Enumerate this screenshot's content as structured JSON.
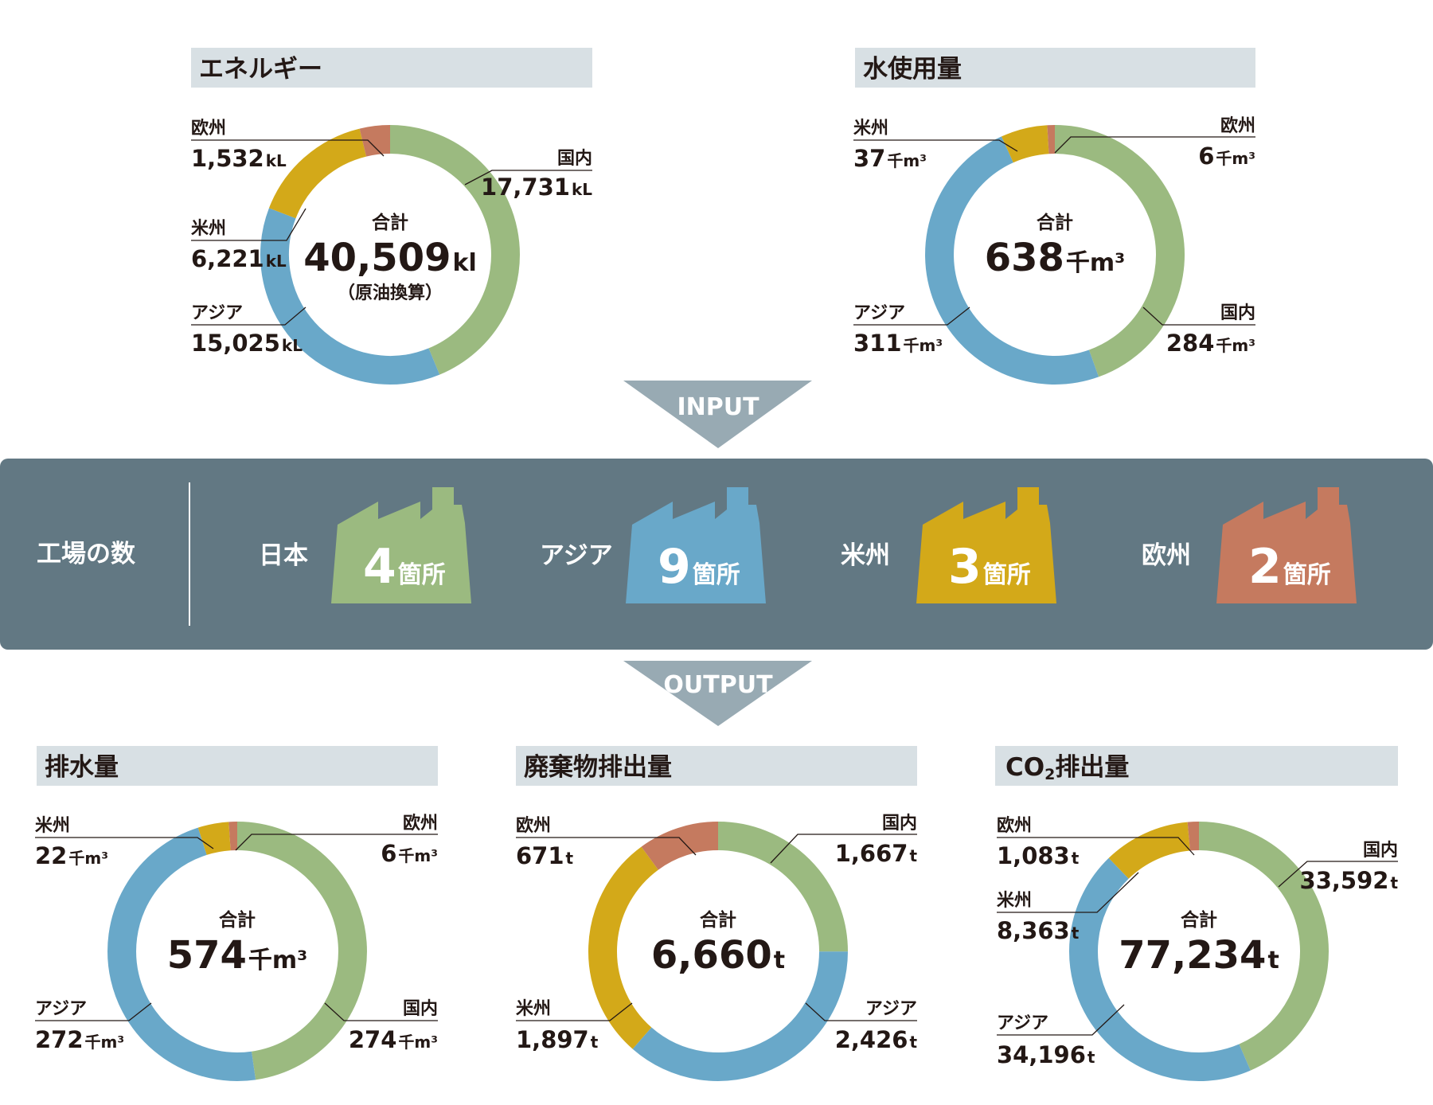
{
  "colors": {
    "domestic": "#9bba80",
    "asia": "#69a8c9",
    "americas": "#d3a919",
    "europe": "#c57a5f",
    "band": "#627883",
    "arrow": "#98aab3",
    "header_bg": "#d8e0e4"
  },
  "io": {
    "input": "INPUT",
    "output": "OUTPUT"
  },
  "factories": {
    "title": "工場の数",
    "items": [
      {
        "region": "日本",
        "count": "4",
        "unit": "箇所",
        "color": "#9bba80"
      },
      {
        "region": "アジア",
        "count": "9",
        "unit": "箇所",
        "color": "#69a8c9"
      },
      {
        "region": "米州",
        "count": "3",
        "unit": "箇所",
        "color": "#d3a919"
      },
      {
        "region": "欧州",
        "count": "2",
        "unit": "箇所",
        "color": "#c57a5f"
      }
    ]
  },
  "chart_data": [
    {
      "type": "pie",
      "title": "エネルギー",
      "total_label": "合計",
      "total_value": "40,509",
      "total_unit": "kl",
      "total_note": "（原油換算）",
      "slices": [
        {
          "region": "国内",
          "value": 17731,
          "display": "17,731",
          "unit": "kL"
        },
        {
          "region": "アジア",
          "value": 15025,
          "display": "15,025",
          "unit": "kL"
        },
        {
          "region": "米州",
          "value": 6221,
          "display": "6,221",
          "unit": "kL"
        },
        {
          "region": "欧州",
          "value": 1532,
          "display": "1,532",
          "unit": "kL"
        }
      ]
    },
    {
      "type": "pie",
      "title": "水使用量",
      "total_label": "合計",
      "total_value": "638",
      "total_unit": "千m³",
      "slices": [
        {
          "region": "国内",
          "value": 284,
          "display": "284",
          "unit": "千m³"
        },
        {
          "region": "アジア",
          "value": 311,
          "display": "311",
          "unit": "千m³"
        },
        {
          "region": "米州",
          "value": 37,
          "display": "37",
          "unit": "千m³"
        },
        {
          "region": "欧州",
          "value": 6,
          "display": "6",
          "unit": "千m³"
        }
      ]
    },
    {
      "type": "pie",
      "title": "排水量",
      "total_label": "合計",
      "total_value": "574",
      "total_unit": "千m³",
      "slices": [
        {
          "region": "国内",
          "value": 274,
          "display": "274",
          "unit": "千m³"
        },
        {
          "region": "アジア",
          "value": 272,
          "display": "272",
          "unit": "千m³"
        },
        {
          "region": "米州",
          "value": 22,
          "display": "22",
          "unit": "千m³"
        },
        {
          "region": "欧州",
          "value": 6,
          "display": "6",
          "unit": "千m³"
        }
      ]
    },
    {
      "type": "pie",
      "title": "廃棄物排出量",
      "total_label": "合計",
      "total_value": "6,660",
      "total_unit": "t",
      "slices": [
        {
          "region": "国内",
          "value": 1667,
          "display": "1,667",
          "unit": "t"
        },
        {
          "region": "アジア",
          "value": 2426,
          "display": "2,426",
          "unit": "t"
        },
        {
          "region": "米州",
          "value": 1897,
          "display": "1,897",
          "unit": "t"
        },
        {
          "region": "欧州",
          "value": 671,
          "display": "671",
          "unit": "t"
        }
      ]
    },
    {
      "type": "pie",
      "title": "CO",
      "title_sub": "2",
      "title_rest": "排出量",
      "total_label": "合計",
      "total_value": "77,234",
      "total_unit": "t",
      "slices": [
        {
          "region": "国内",
          "value": 33592,
          "display": "33,592",
          "unit": "t"
        },
        {
          "region": "アジア",
          "value": 34196,
          "display": "34,196",
          "unit": "t"
        },
        {
          "region": "米州",
          "value": 8363,
          "display": "8,363",
          "unit": "t"
        },
        {
          "region": "欧州",
          "value": 1083,
          "display": "1,083",
          "unit": "t"
        }
      ]
    }
  ]
}
